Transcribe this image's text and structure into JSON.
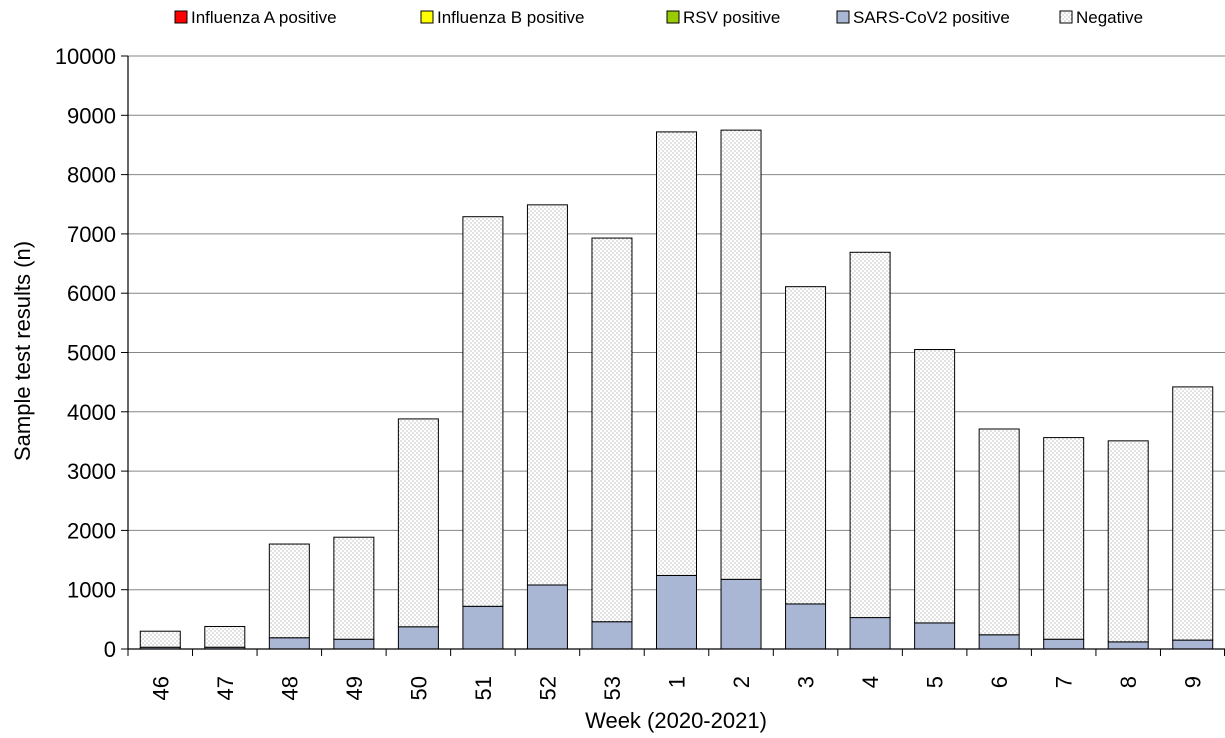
{
  "chart_data": {
    "type": "bar",
    "stacked": true,
    "title": "",
    "xlabel": "Week (2020-2021)",
    "ylabel": "Sample test results (n)",
    "ylim": [
      0,
      10000
    ],
    "yticks": [
      "0",
      "1000",
      "2000",
      "3000",
      "4000",
      "5000",
      "6000",
      "7000",
      "8000",
      "9000",
      "10000"
    ],
    "grid": true,
    "legend_position": "top",
    "categories": [
      "46",
      "47",
      "48",
      "49",
      "50",
      "51",
      "52",
      "53",
      "1",
      "2",
      "3",
      "4",
      "5",
      "6",
      "7",
      "8",
      "9"
    ],
    "series": [
      {
        "name": "Influenza A positive",
        "color": "#ff0000",
        "values": [
          0,
          0,
          0,
          0,
          0,
          0,
          0,
          0,
          0,
          0,
          0,
          0,
          0,
          0,
          0,
          0,
          0
        ]
      },
      {
        "name": "Influenza B positive",
        "color": "#ffff00",
        "values": [
          0,
          0,
          0,
          0,
          0,
          0,
          0,
          0,
          0,
          0,
          0,
          0,
          0,
          0,
          0,
          0,
          0
        ]
      },
      {
        "name": "RSV positive",
        "color": "#99cc00",
        "values": [
          0,
          0,
          0,
          0,
          0,
          0,
          0,
          0,
          0,
          0,
          0,
          0,
          0,
          0,
          0,
          0,
          0
        ]
      },
      {
        "name": "SARS-CoV2 positive",
        "color": "#a9b7d4",
        "values": [
          30,
          30,
          190,
          165,
          375,
          720,
          1080,
          460,
          1240,
          1175,
          760,
          530,
          440,
          240,
          165,
          120,
          150
        ]
      },
      {
        "name": "Negative",
        "color": "#f2f2f2",
        "pattern": "dotted",
        "values": [
          270,
          350,
          1580,
          1720,
          3505,
          6570,
          6410,
          6470,
          7480,
          7575,
          5350,
          6160,
          4610,
          3470,
          3400,
          3390,
          4270
        ]
      }
    ]
  }
}
